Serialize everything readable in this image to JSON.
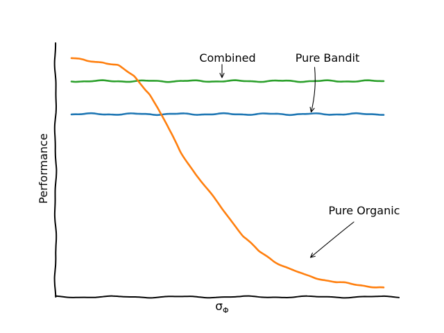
{
  "chart_data": {
    "type": "line",
    "title": "",
    "xlabel": "σΦ",
    "xlabel_main": "σ",
    "xlabel_subscript": "Φ",
    "ylabel": "Performance",
    "xlim": [
      0,
      1
    ],
    "ylim": [
      0,
      1
    ],
    "show_ticks": false,
    "grid": false,
    "style": "xkcd",
    "x": [
      0,
      0.05,
      0.1,
      0.15,
      0.2,
      0.25,
      0.3,
      0.35,
      0.4,
      0.45,
      0.5,
      0.55,
      0.6,
      0.65,
      0.7,
      0.75,
      0.8,
      0.85,
      0.9,
      0.95,
      1
    ],
    "series": [
      {
        "name": "Combined",
        "color": "#2ca02c",
        "values": [
          0.85,
          0.85,
          0.85,
          0.85,
          0.85,
          0.85,
          0.85,
          0.85,
          0.85,
          0.85,
          0.85,
          0.85,
          0.85,
          0.85,
          0.85,
          0.85,
          0.85,
          0.85,
          0.85,
          0.85,
          0.85
        ]
      },
      {
        "name": "Pure Bandit",
        "color": "#1f77b4",
        "values": [
          0.72,
          0.72,
          0.72,
          0.72,
          0.72,
          0.72,
          0.72,
          0.72,
          0.72,
          0.72,
          0.72,
          0.72,
          0.72,
          0.72,
          0.72,
          0.72,
          0.72,
          0.72,
          0.72,
          0.72,
          0.72
        ]
      },
      {
        "name": "Pure Organic",
        "color": "#ff7f0e",
        "values": [
          0.94,
          0.93,
          0.925,
          0.91,
          0.87,
          0.8,
          0.69,
          0.57,
          0.48,
          0.4,
          0.32,
          0.24,
          0.18,
          0.14,
          0.11,
          0.085,
          0.07,
          0.058,
          0.05,
          0.043,
          0.035
        ]
      }
    ],
    "annotations": [
      {
        "text": "Combined",
        "points_to": "Combined",
        "at_x": 0.48
      },
      {
        "text": "Pure Bandit",
        "points_to": "Pure Bandit",
        "at_x": 0.77
      },
      {
        "text": "Pure Organic",
        "points_to": "Pure Organic",
        "at_x": 0.77
      }
    ]
  }
}
